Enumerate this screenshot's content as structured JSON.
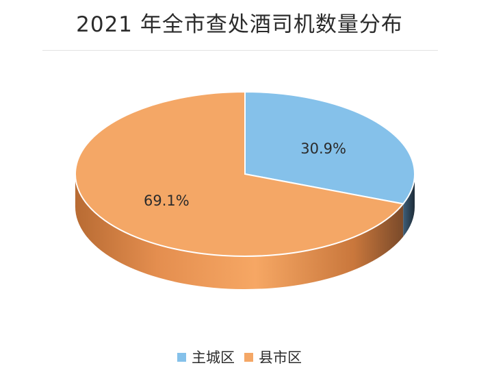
{
  "title": "2021 年全市查处酒司机数量分布",
  "chart_data": {
    "type": "pie",
    "title": "2021 年全市查处酒司机数量分布",
    "slices": [
      {
        "name": "主城区",
        "value": 30.9,
        "label": "30.9%",
        "color": "#85c1ea"
      },
      {
        "name": "县市区",
        "value": 69.1,
        "label": "69.1%",
        "color": "#f4a766"
      }
    ],
    "legend": "bottom",
    "style": "3d"
  }
}
